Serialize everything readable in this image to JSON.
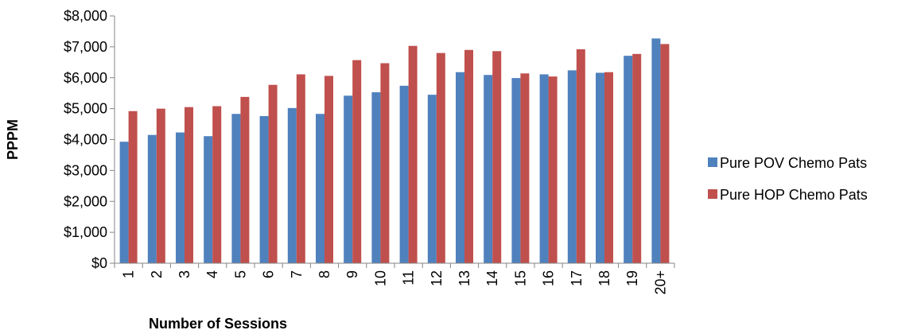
{
  "chart_data": {
    "type": "bar",
    "title": "",
    "xlabel": "Number of Sessions",
    "ylabel": "PPPM",
    "ylim": [
      0,
      8000
    ],
    "yticks": [
      0,
      1000,
      2000,
      3000,
      4000,
      5000,
      6000,
      7000,
      8000
    ],
    "ytick_labels": [
      "$0",
      "$1,000",
      "$2,000",
      "$3,000",
      "$4,000",
      "$5,000",
      "$6,000",
      "$7,000",
      "$8,000"
    ],
    "categories": [
      "1",
      "2",
      "3",
      "4",
      "5",
      "6",
      "7",
      "8",
      "9",
      "10",
      "11",
      "12",
      "13",
      "14",
      "15",
      "16",
      "17",
      "18",
      "19",
      "20+"
    ],
    "grid": false,
    "legend_position": "right",
    "series": [
      {
        "name": "Pure POV Chemo Pats",
        "color": "#4F81BD",
        "values": [
          3930,
          4150,
          4230,
          4110,
          4830,
          4760,
          5020,
          4830,
          5420,
          5530,
          5740,
          5450,
          6180,
          6090,
          5990,
          6110,
          6240,
          6160,
          6710,
          7270
        ]
      },
      {
        "name": "Pure HOP Chemo Pats",
        "color": "#C0504D",
        "values": [
          4920,
          5000,
          5050,
          5080,
          5380,
          5770,
          6110,
          6060,
          6570,
          6470,
          7030,
          6800,
          6900,
          6860,
          6140,
          6040,
          6920,
          6180,
          6770,
          7090
        ]
      }
    ]
  }
}
